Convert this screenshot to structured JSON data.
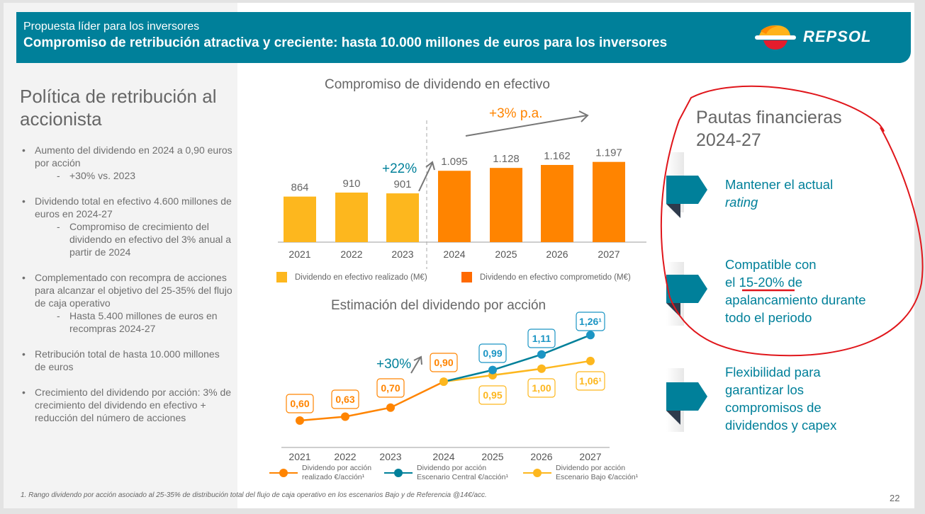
{
  "header": {
    "subtitle": "Propuesta líder para los inversores",
    "title": "Compromiso de retribución atractiva y creciente: hasta 10.000 millones de euros para los inversores",
    "logo_text": "REPSOL",
    "brand_color": "#00809a"
  },
  "left_panel": {
    "title": "Política de retribución al accionista",
    "bullets": [
      {
        "text": "Aumento del dividendo en 2024 a 0,90 euros por acción",
        "sub": [
          "+30% vs. 2023"
        ]
      },
      {
        "text": "Dividendo total en efectivo 4.600 millones de euros en 2024-27",
        "sub": [
          "Compromiso de crecimiento del dividendo en efectivo del 3% anual a partir de 2024"
        ]
      },
      {
        "text": "Complementado con recompra de acciones para alcanzar el objetivo del 25-35% del flujo de caja operativo",
        "sub": [
          "Hasta 5.400 millones de euros en recompras 2024-27"
        ]
      },
      {
        "text": "Retribución total de hasta 10.000 millones de euros",
        "sub": []
      },
      {
        "text": "Crecimiento del dividendo por acción: 3% de crecimiento del dividendo en efectivo + reducción del número de acciones",
        "sub": []
      }
    ]
  },
  "right_panel": {
    "title": "Pautas financieras 2024-27",
    "guidelines": [
      {
        "text_pre": "Mantener el actual ",
        "text_em": "rating",
        "text_post": ""
      },
      {
        "text_pre": "Compatible con el ",
        "text_em": "15-20%",
        "text_post": " de apalancamiento durante todo el periodo"
      },
      {
        "text_pre": "Flexibilidad para garantizar los compromisos de dividendos y capex",
        "text_em": "",
        "text_post": ""
      }
    ],
    "annotation_color": "#e0161b"
  },
  "chart_data": [
    {
      "type": "bar",
      "title": "Compromiso de dividendo en efectivo",
      "categories": [
        "2021",
        "2022",
        "2023",
        "2024",
        "2025",
        "2026",
        "2027"
      ],
      "values": [
        864,
        910,
        901,
        1095,
        1128,
        1162,
        1197
      ],
      "value_labels": [
        "864",
        "910",
        "901",
        "1.095",
        "1.128",
        "1.162",
        "1.197"
      ],
      "series": [
        {
          "name": "Dividendo en efectivo realizado (M€)",
          "categories": [
            "2021",
            "2022",
            "2023"
          ],
          "values": [
            864,
            910,
            901
          ],
          "color": "#fdb71e"
        },
        {
          "name": "Dividendo en efectivo comprometido (M€)",
          "categories": [
            "2024",
            "2025",
            "2026",
            "2027"
          ],
          "values": [
            1095,
            1128,
            1162,
            1197
          ],
          "color": "#ff8400"
        }
      ],
      "annotations": [
        {
          "text": "+22%",
          "color": "#00809a"
        },
        {
          "text": "+3% p.a.",
          "color": "#ff8400"
        }
      ],
      "ylim": [
        0,
        1300
      ],
      "grid": false,
      "legend": "bottom"
    },
    {
      "type": "line",
      "title": "Estimación del dividendo por acción",
      "x": [
        "2021",
        "2022",
        "2023",
        "2024",
        "2025",
        "2026",
        "2027"
      ],
      "series": [
        {
          "name": "Dividendo por acción realizado €/acción¹",
          "x": [
            "2021",
            "2022",
            "2023",
            "2024"
          ],
          "values": [
            0.6,
            0.63,
            0.7,
            0.9
          ],
          "labels": [
            "0,60",
            "0,63",
            "0,70",
            "0,90"
          ],
          "color": "#ff8400"
        },
        {
          "name": "Dividendo por acción Escenario Central €/acción¹",
          "x": [
            "2024",
            "2025",
            "2026",
            "2027"
          ],
          "values": [
            0.9,
            0.99,
            1.11,
            1.26
          ],
          "labels": [
            "",
            "0,99",
            "1,11",
            "1,26¹"
          ],
          "color": "#0e86ad"
        },
        {
          "name": "Dividendo por acción Escenario Bajo €/acción¹",
          "x": [
            "2024",
            "2025",
            "2026",
            "2027"
          ],
          "values": [
            0.9,
            0.95,
            1.0,
            1.06
          ],
          "labels": [
            "",
            "0,95",
            "1,00",
            "1,06¹"
          ],
          "color": "#fdb71e"
        }
      ],
      "annotations": [
        {
          "text": "+30%",
          "color": "#00809a"
        }
      ],
      "legend_lines": [
        [
          "Dividendo por acción",
          "realizado €/acción¹"
        ],
        [
          "Dividendo por acción",
          "Escenario Central €/acción¹"
        ],
        [
          "Dividendo por acción",
          "Escenario Bajo €/acción¹"
        ]
      ],
      "ylim": [
        0.5,
        1.35
      ],
      "grid": false,
      "legend": "bottom"
    }
  ],
  "footnote": "1. Rango dividendo por acción asociado al 25-35% de distribución total del flujo de caja operativo en los escenarios Bajo y de Referencia @14€/acc.",
  "page_number": "22"
}
